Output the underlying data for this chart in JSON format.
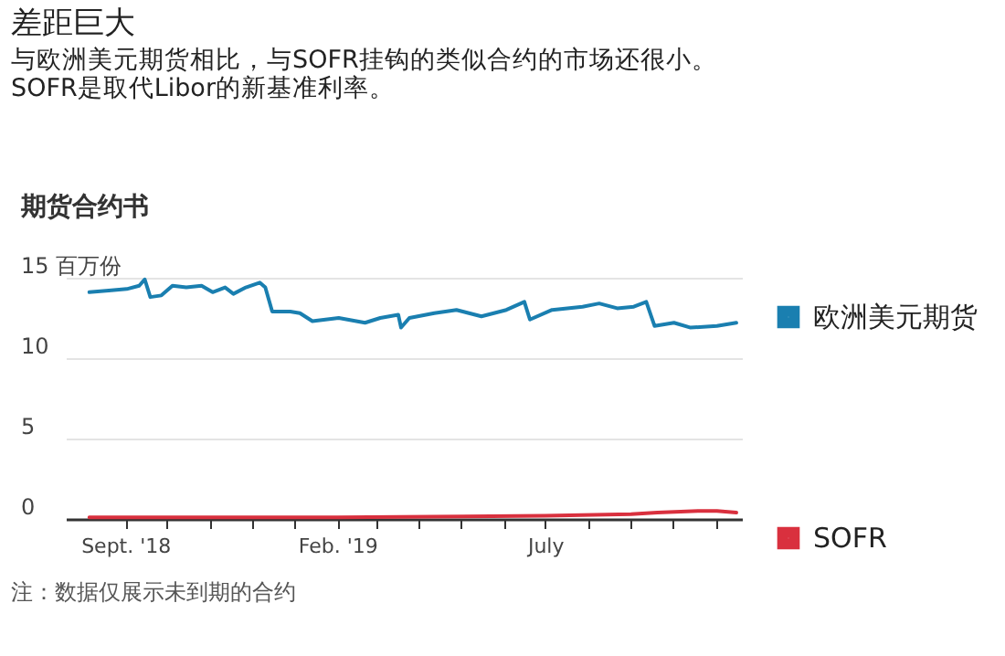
{
  "chart_data": {
    "type": "line",
    "title": "差距巨大",
    "subtitle": "与欧洲美元期货相比，与SOFR挂钩的类似合约的市场还很小。\nSOFR是取代Libor的新基准利率。",
    "ylabel": "期货合约书",
    "annotations": [
      "注：数据仅展示未到期的合约"
    ],
    "x": [
      "2018-08-06",
      "2018-08-20",
      "2018-09-02",
      "2018-09-11",
      "2018-09-15",
      "2018-09-19",
      "2018-09-27",
      "2018-10-05",
      "2018-10-15",
      "2018-10-26",
      "2018-11-03",
      "2018-11-12",
      "2018-11-18",
      "2018-11-27",
      "2018-12-07",
      "2018-12-11",
      "2018-12-16",
      "2018-12-29",
      "2019-01-05",
      "2019-01-14",
      "2019-02-02",
      "2019-02-21",
      "2019-03-04",
      "2019-03-17",
      "2019-03-19",
      "2019-03-25",
      "2019-04-12",
      "2019-04-28",
      "2019-05-16",
      "2019-06-03",
      "2019-06-16",
      "2019-06-20",
      "2019-07-06",
      "2019-07-28",
      "2019-08-09",
      "2019-08-22",
      "2019-09-03",
      "2019-09-12",
      "2019-09-18",
      "2019-10-02",
      "2019-10-14",
      "2019-11-02",
      "2019-11-16"
    ],
    "series": [
      {
        "name": "欧洲美元期货",
        "color": "#1a7fb0",
        "values": [
          14.1,
          14.2,
          14.3,
          14.5,
          14.9,
          13.8,
          13.9,
          14.5,
          14.4,
          14.5,
          14.1,
          14.4,
          14.0,
          14.4,
          14.7,
          14.4,
          12.9,
          12.9,
          12.8,
          12.3,
          12.5,
          12.2,
          12.5,
          12.7,
          11.9,
          12.5,
          12.8,
          13.0,
          12.6,
          13.0,
          13.5,
          12.4,
          13.0,
          13.2,
          13.4,
          13.1,
          13.2,
          13.5,
          12.0,
          12.2,
          11.9,
          12.0,
          12.2
        ]
      },
      {
        "name": "SOFR",
        "color": "#d9303e",
        "x": [
          "2018-08-06",
          "2019-02-01",
          "2019-07-01",
          "2019-09-01",
          "2019-09-20",
          "2019-10-20",
          "2019-11-02",
          "2019-11-16"
        ],
        "values": [
          0.1,
          0.1,
          0.2,
          0.3,
          0.4,
          0.5,
          0.5,
          0.4
        ]
      }
    ],
    "xlim": [
      "2018-07-20",
      "2019-11-20"
    ],
    "xticks": [
      {
        "value": "2018-09",
        "label": "Sept. '18"
      },
      {
        "value": "2018-10",
        "label": null
      },
      {
        "value": "2018-11",
        "label": null
      },
      {
        "value": "2018-12",
        "label": null
      },
      {
        "value": "2019-01",
        "label": null
      },
      {
        "value": "2019-02",
        "label": "Feb. '19"
      },
      {
        "value": "2019-03",
        "label": null
      },
      {
        "value": "2019-04",
        "label": null
      },
      {
        "value": "2019-05",
        "label": null
      },
      {
        "value": "2019-06",
        "label": null
      },
      {
        "value": "2019-07",
        "label": "July"
      },
      {
        "value": "2019-08",
        "label": null
      },
      {
        "value": "2019-09",
        "label": null
      },
      {
        "value": "2019-10",
        "label": null
      },
      {
        "value": "2019-11",
        "label": null
      }
    ],
    "ylim": [
      0,
      15
    ],
    "yticks": [
      0,
      5,
      10,
      {
        "value": 15,
        "label": "15 百万份"
      }
    ],
    "grid": "y",
    "legend": "right",
    "marker": "none",
    "line_style": "solid"
  }
}
